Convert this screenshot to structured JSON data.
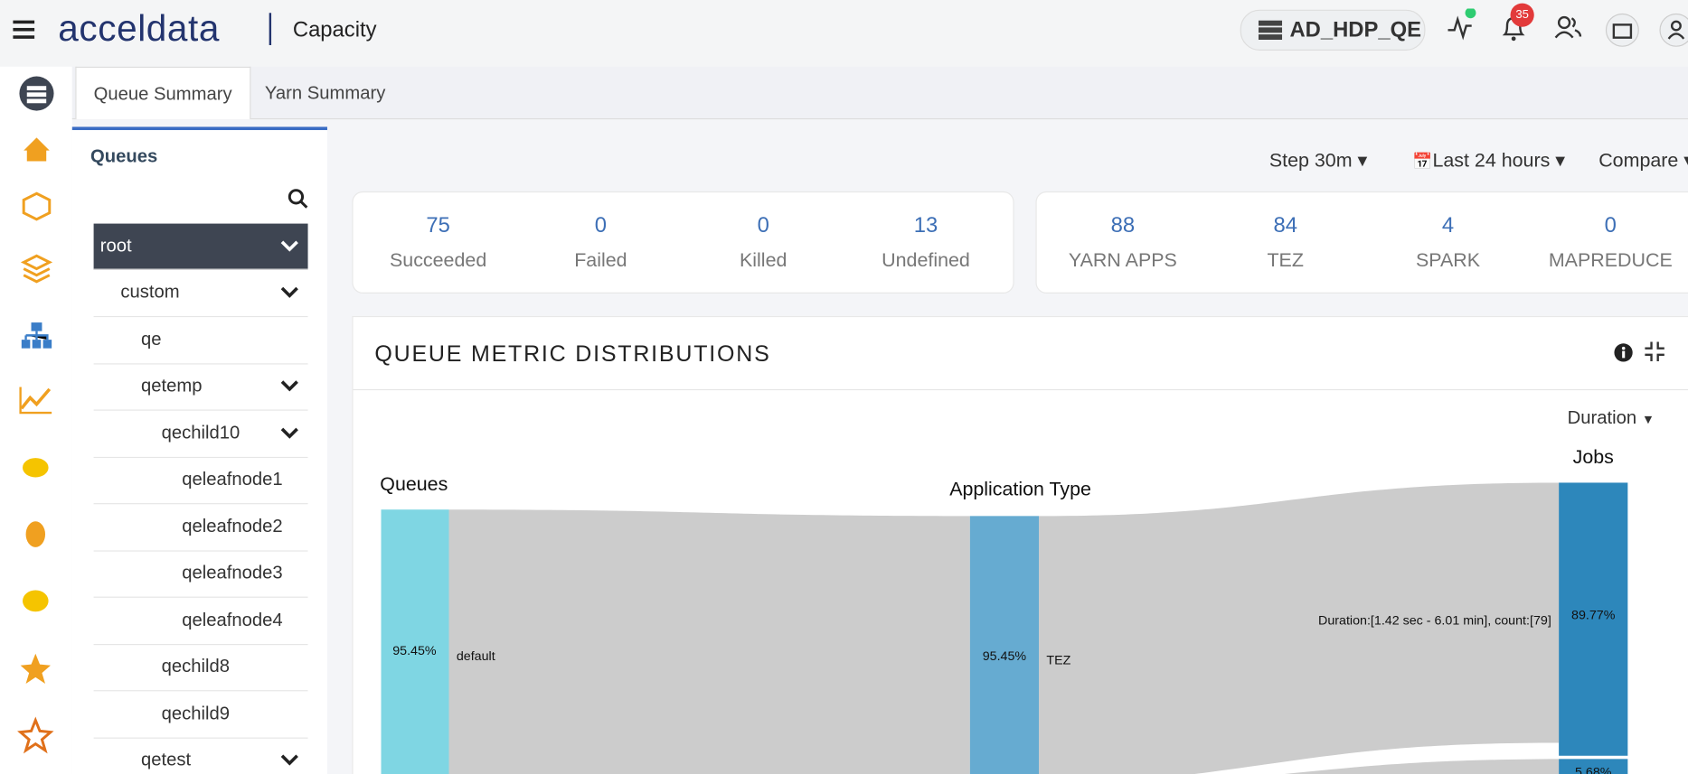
{
  "header": {
    "brand": "acceldata",
    "section": "Capacity",
    "cluster": "AD_HDP_QE",
    "notifications": "35"
  },
  "tabs": [
    "Queue Summary",
    "Yarn Summary"
  ],
  "queues": {
    "title": "Queues",
    "items": [
      {
        "label": "root",
        "depth": 0,
        "caret": true,
        "selected": true
      },
      {
        "label": "custom",
        "depth": 1,
        "caret": true
      },
      {
        "label": "qe",
        "depth": 2,
        "caret": false
      },
      {
        "label": "qetemp",
        "depth": 2,
        "caret": true
      },
      {
        "label": "qechild10",
        "depth": 3,
        "caret": true
      },
      {
        "label": "qeleafnode1",
        "depth": 4,
        "caret": false
      },
      {
        "label": "qeleafnode2",
        "depth": 4,
        "caret": false
      },
      {
        "label": "qeleafnode3",
        "depth": 4,
        "caret": false
      },
      {
        "label": "qeleafnode4",
        "depth": 4,
        "caret": false
      },
      {
        "label": "qechild8",
        "depth": 3,
        "caret": false
      },
      {
        "label": "qechild9",
        "depth": 3,
        "caret": false
      },
      {
        "label": "qetest",
        "depth": 2,
        "caret": true
      }
    ]
  },
  "controls": [
    "Step 30m",
    "Last 24 hours",
    "Compare"
  ],
  "stats": [
    [
      {
        "value": 75,
        "label": "Succeeded"
      },
      {
        "value": 0,
        "label": "Failed"
      },
      {
        "value": 0,
        "label": "Killed"
      },
      {
        "value": 13,
        "label": "Undefined"
      }
    ],
    [
      {
        "value": 88,
        "label": "YARN APPS"
      },
      {
        "value": 84,
        "label": "TEZ"
      },
      {
        "value": 4,
        "label": "SPARK"
      },
      {
        "value": 0,
        "label": "MAPREDUCE"
      }
    ]
  ],
  "panel": {
    "title": "QUEUE METRIC DISTRIBUTIONS",
    "metric": "Duration",
    "sankey": {
      "columns": [
        "Queues",
        "Application Type",
        "Jobs"
      ],
      "nodes": [
        {
          "percent": "95.45%",
          "name": "default"
        },
        {
          "percent": "95.45%",
          "name": "TEZ"
        },
        {
          "percent": "89.77%"
        },
        {
          "percent": "5.68%"
        }
      ],
      "link_label": "Duration:[1.42 sec - 6.01 min], count:[79]"
    }
  }
}
